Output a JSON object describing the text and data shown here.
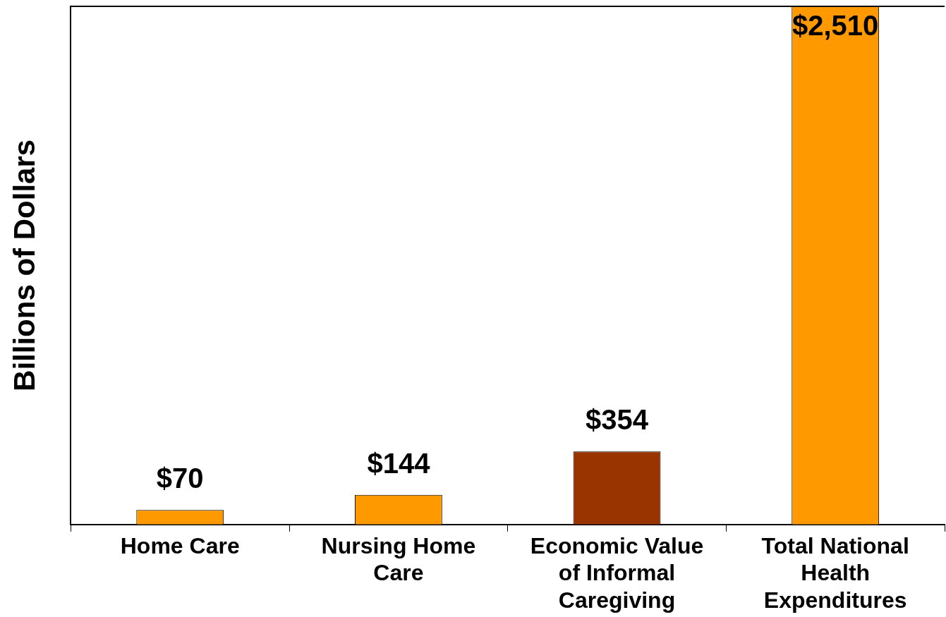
{
  "chart_data": {
    "type": "bar",
    "ylabel": "Billions of Dollars",
    "categories": [
      "Home Care",
      "Nursing Home Care",
      "Economic Value of Informal Caregiving",
      "Total National Health Expenditures"
    ],
    "values": [
      70,
      144,
      354,
      2510
    ],
    "colors": [
      "#ff9900",
      "#ff9900",
      "#993300",
      "#ff9900"
    ],
    "value_labels": [
      "$70",
      "$144",
      "$354",
      "$2,510"
    ],
    "grid": false,
    "legend": false
  }
}
